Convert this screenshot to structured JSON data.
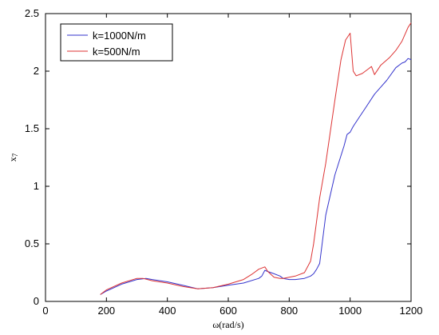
{
  "chart_data": {
    "type": "line",
    "xlabel": "ω(rad/s)",
    "ylabel": "x",
    "ylabel_subscript": "7",
    "xlim": [
      0,
      1200
    ],
    "ylim": [
      0,
      2.5
    ],
    "xticks": [
      0,
      200,
      400,
      600,
      800,
      1000,
      1200
    ],
    "yticks": [
      0,
      0.5,
      1,
      1.5,
      2,
      2.5
    ],
    "xtick_labels": [
      "0",
      "200",
      "400",
      "600",
      "800",
      "1000",
      "1200"
    ],
    "ytick_labels": [
      "0",
      "0.5",
      "1",
      "1.5",
      "2",
      "2.5"
    ],
    "grid": false,
    "legend_position": "top-left",
    "series": [
      {
        "name": "k=1000N/m",
        "color": "#3333cc",
        "x": [
          180,
          200,
          250,
          300,
          330,
          350,
          400,
          450,
          500,
          550,
          600,
          650,
          700,
          710,
          720,
          730,
          750,
          770,
          780,
          800,
          820,
          850,
          870,
          880,
          890,
          900,
          920,
          950,
          980,
          990,
          1000,
          1010,
          1030,
          1050,
          1080,
          1100,
          1120,
          1150,
          1170,
          1180,
          1190,
          1200
        ],
        "y": [
          0.06,
          0.09,
          0.15,
          0.19,
          0.2,
          0.19,
          0.17,
          0.14,
          0.11,
          0.12,
          0.14,
          0.16,
          0.2,
          0.22,
          0.27,
          0.26,
          0.24,
          0.22,
          0.2,
          0.19,
          0.19,
          0.2,
          0.22,
          0.24,
          0.28,
          0.33,
          0.75,
          1.1,
          1.35,
          1.45,
          1.47,
          1.52,
          1.6,
          1.68,
          1.8,
          1.86,
          1.92,
          2.03,
          2.07,
          2.08,
          2.11,
          2.1
        ]
      },
      {
        "name": "k=500N/m",
        "color": "#dd3333",
        "x": [
          180,
          200,
          250,
          300,
          320,
          350,
          400,
          450,
          500,
          550,
          600,
          650,
          680,
          700,
          720,
          730,
          750,
          770,
          780,
          800,
          820,
          850,
          870,
          880,
          890,
          900,
          920,
          950,
          970,
          985,
          1000,
          1010,
          1020,
          1040,
          1060,
          1070,
          1080,
          1100,
          1130,
          1150,
          1170,
          1190,
          1200
        ],
        "y": [
          0.06,
          0.1,
          0.16,
          0.2,
          0.2,
          0.18,
          0.16,
          0.13,
          0.11,
          0.12,
          0.15,
          0.19,
          0.24,
          0.28,
          0.3,
          0.26,
          0.21,
          0.2,
          0.2,
          0.21,
          0.22,
          0.25,
          0.35,
          0.5,
          0.7,
          0.9,
          1.2,
          1.75,
          2.1,
          2.27,
          2.33,
          2.0,
          1.96,
          1.98,
          2.02,
          2.04,
          1.97,
          2.05,
          2.12,
          2.18,
          2.26,
          2.38,
          2.42
        ]
      }
    ]
  }
}
